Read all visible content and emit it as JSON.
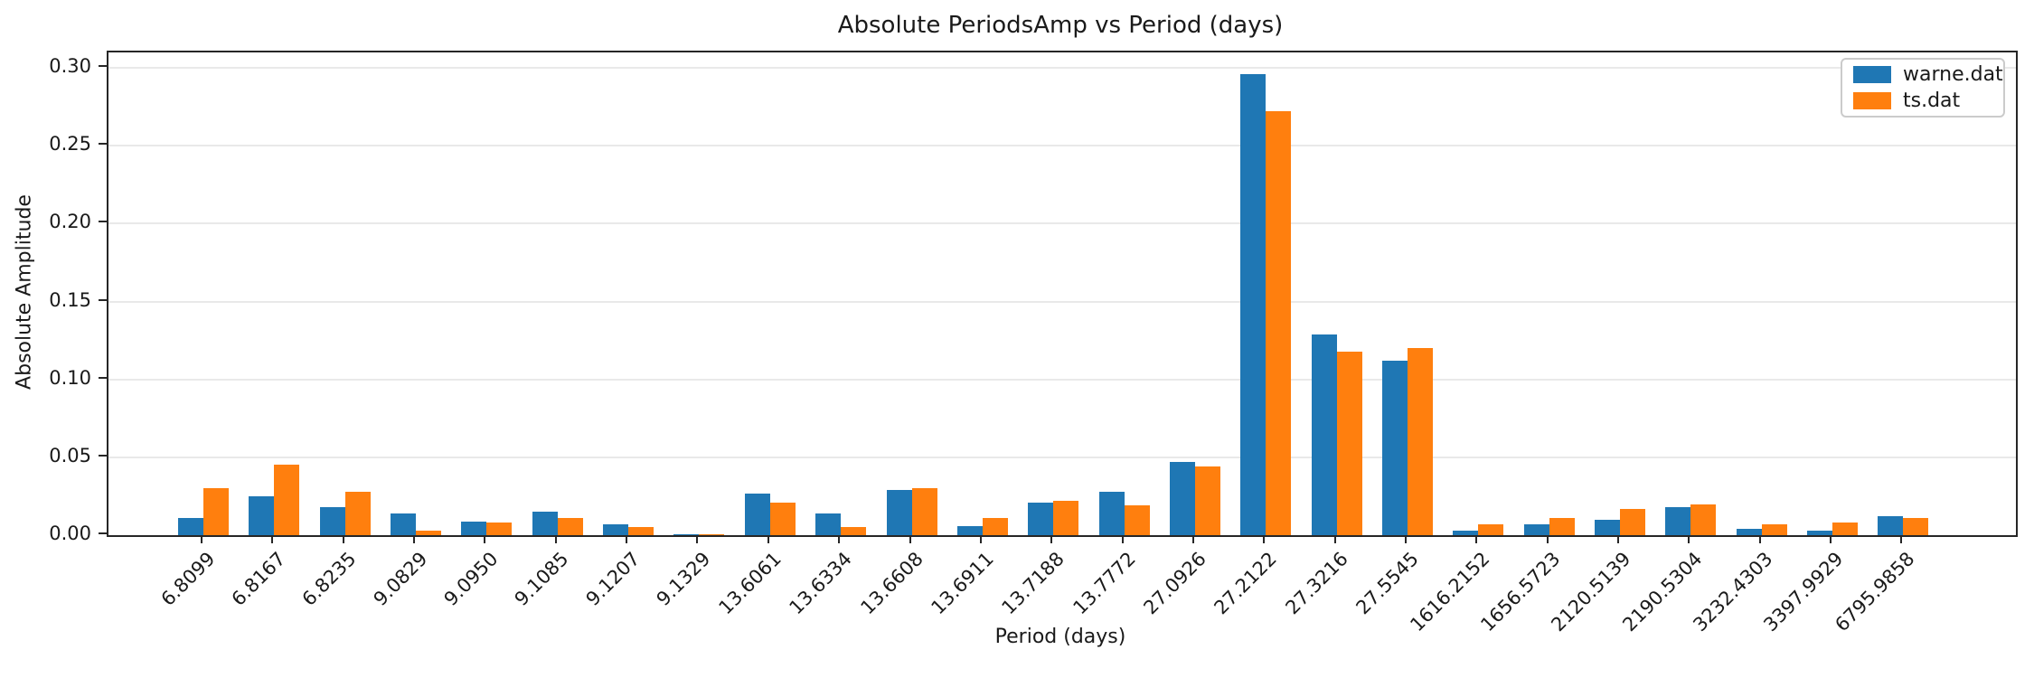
{
  "chart_data": {
    "type": "bar",
    "title": "Absolute PeriodsAmp vs Period (days)",
    "xlabel": "Period (days)",
    "ylabel": "Absolute Amplitude",
    "categories": [
      "6.8099",
      "6.8167",
      "6.8235",
      "9.0829",
      "9.0950",
      "9.1085",
      "9.1207",
      "9.1329",
      "13.6061",
      "13.6334",
      "13.6608",
      "13.6911",
      "13.7188",
      "13.7772",
      "27.0926",
      "27.2122",
      "27.3216",
      "27.5545",
      "1616.2152",
      "1656.5723",
      "2120.5139",
      "2190.5304",
      "3232.4303",
      "3397.9929",
      "6795.9858"
    ],
    "series": [
      {
        "name": "warne.dat",
        "color": "#1f77b4",
        "values": [
          0.011,
          0.025,
          0.018,
          0.014,
          0.009,
          0.015,
          0.007,
          0.0005,
          0.027,
          0.014,
          0.029,
          0.006,
          0.021,
          0.028,
          0.047,
          0.296,
          0.129,
          0.112,
          0.003,
          0.007,
          0.01,
          0.018,
          0.004,
          0.003,
          0.012
        ]
      },
      {
        "name": "ts.dat",
        "color": "#ff7f0e",
        "values": [
          0.03,
          0.045,
          0.028,
          0.003,
          0.008,
          0.011,
          0.005,
          0.0005,
          0.021,
          0.005,
          0.03,
          0.011,
          0.022,
          0.019,
          0.044,
          0.272,
          0.118,
          0.12,
          0.007,
          0.011,
          0.017,
          0.02,
          0.007,
          0.008,
          0.011
        ]
      }
    ],
    "ylim": [
      0,
      0.31
    ],
    "yticks": [
      "0.00",
      "0.05",
      "0.10",
      "0.15",
      "0.20",
      "0.25",
      "0.30"
    ],
    "ytick_values": [
      0,
      0.05,
      0.1,
      0.15,
      0.2,
      0.25,
      0.3
    ],
    "grid": true,
    "legend_position": "upper right",
    "xtick_rotation_deg": 45
  }
}
